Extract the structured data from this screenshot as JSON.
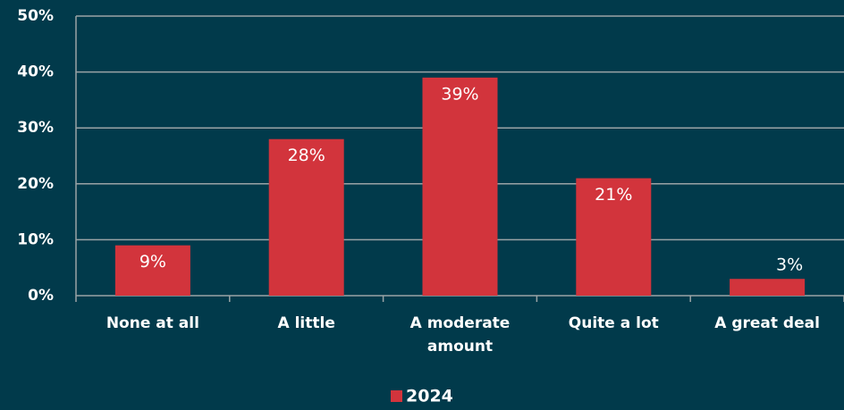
{
  "chart_data": {
    "type": "bar",
    "categories": [
      "None at all",
      "A little",
      "A moderate amount",
      "Quite a lot",
      "A great deal"
    ],
    "series": [
      {
        "name": "2024",
        "color": "#d2343c",
        "values": [
          9,
          28,
          39,
          21,
          3
        ],
        "value_labels": [
          "9%",
          "28%",
          "39%",
          "21%",
          "3%"
        ]
      }
    ],
    "ylim": [
      0,
      50
    ],
    "yticks": [
      {
        "value": 0,
        "label": "0%"
      },
      {
        "value": 10,
        "label": "10%"
      },
      {
        "value": 20,
        "label": "20%"
      },
      {
        "value": 30,
        "label": "30%"
      },
      {
        "value": 40,
        "label": "40%"
      },
      {
        "value": 50,
        "label": "50%"
      }
    ],
    "grid": true,
    "legend": "bottom"
  }
}
